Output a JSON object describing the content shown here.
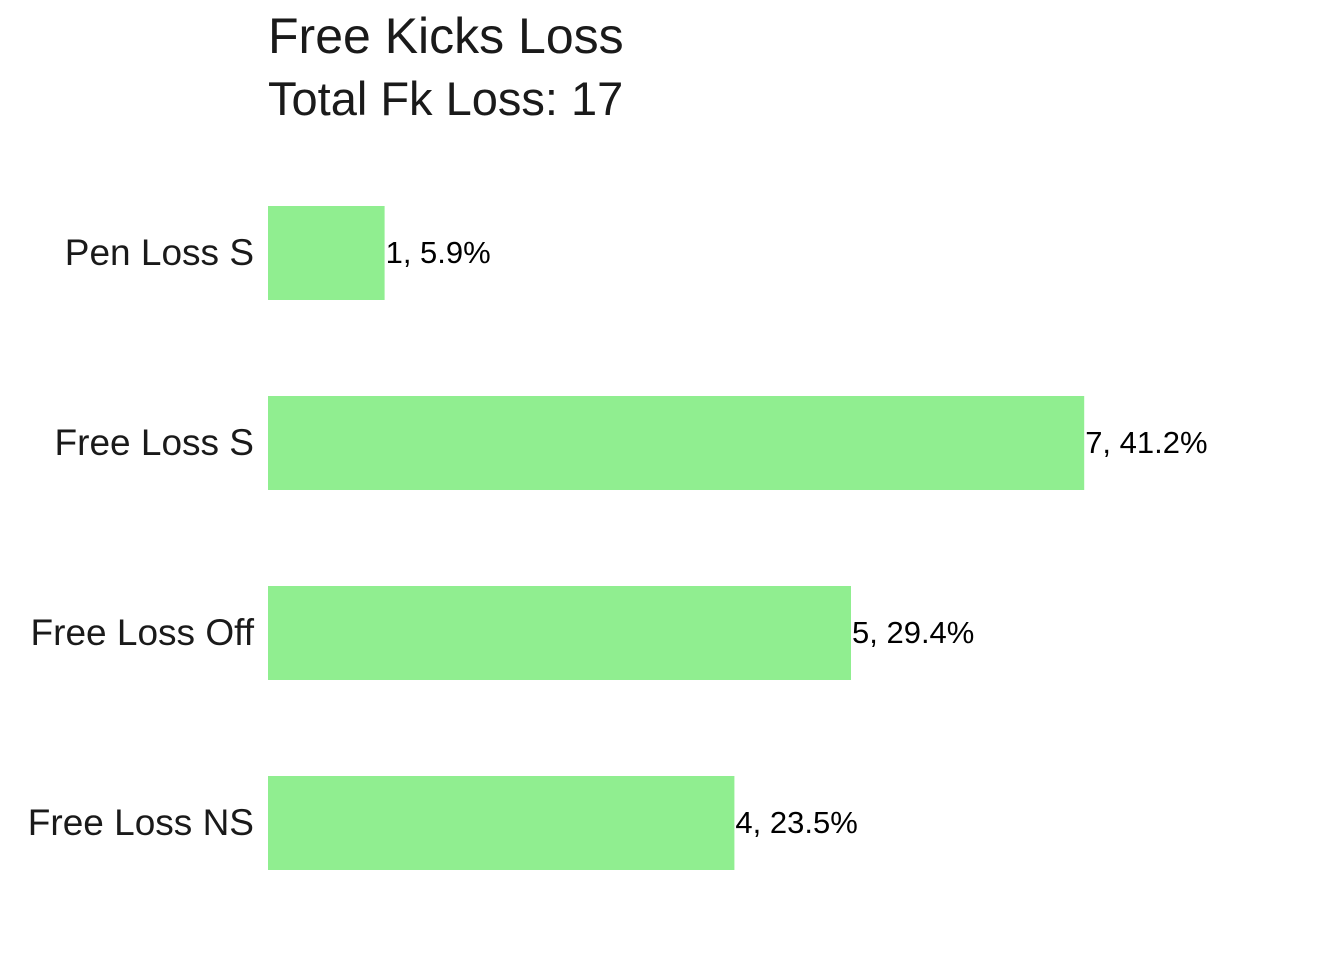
{
  "chart_data": {
    "type": "bar",
    "orientation": "horizontal",
    "title": "Free Kicks Loss",
    "subtitle": "Total Fk Loss: 17",
    "categories": [
      "Pen Loss S",
      "Free Loss S",
      "Free Loss Off",
      "Free Loss NS"
    ],
    "values": [
      1,
      7,
      5,
      4
    ],
    "data_labels": [
      "1, 5.9%",
      "7, 41.2%",
      "5, 29.4%",
      "4, 23.5%"
    ],
    "xlim": [
      0,
      7
    ],
    "grid": false,
    "legend": "none",
    "bar_color": "#90EE90"
  }
}
